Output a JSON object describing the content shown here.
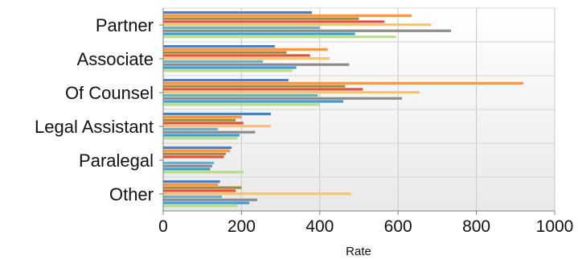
{
  "chart_data": {
    "type": "bar",
    "orientation": "horizontal",
    "categories": [
      "Partner",
      "Associate",
      "Of Counsel",
      "Legal Assistant",
      "Paralegal",
      "Other"
    ],
    "series": [
      {
        "color": "#4f81bd",
        "values": [
          380,
          285,
          320,
          275,
          175,
          145
        ]
      },
      {
        "color": "#f79646",
        "values": [
          635,
          420,
          920,
          200,
          170,
          140
        ]
      },
      {
        "color": "#9e8a3c",
        "values": [
          500,
          315,
          465,
          185,
          160,
          200
        ]
      },
      {
        "color": "#e8503a",
        "values": [
          565,
          375,
          510,
          205,
          155,
          185
        ]
      },
      {
        "color": "#f6c46b",
        "values": [
          685,
          425,
          655,
          275,
          0,
          480
        ]
      },
      {
        "color": "#58b9d1",
        "values": [
          400,
          255,
          395,
          140,
          130,
          150
        ]
      },
      {
        "color": "#8c8c8c",
        "values": [
          735,
          475,
          610,
          235,
          125,
          240
        ]
      },
      {
        "color": "#3a9bd8",
        "values": [
          490,
          340,
          460,
          195,
          120,
          220
        ]
      },
      {
        "color": "#b7dd8a",
        "values": [
          595,
          330,
          400,
          190,
          205,
          190
        ]
      }
    ],
    "xlabel": "Rate",
    "ylabel": "",
    "xlim": [
      0,
      1000
    ],
    "xticks": [
      "0",
      "200",
      "400",
      "600",
      "800",
      "1000"
    ],
    "grid": true,
    "legend": "none"
  }
}
